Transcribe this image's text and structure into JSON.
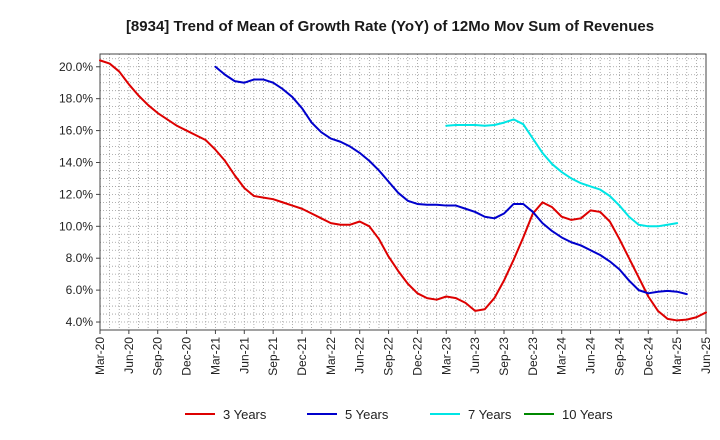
{
  "chart_data": {
    "type": "line",
    "title": "[8934]  Trend of Mean of Growth Rate (YoY) of 12Mo Mov Sum of Revenues",
    "xlabel": "",
    "ylabel": "",
    "ylim": [
      3.5,
      20.8
    ],
    "yticks": [
      4,
      6,
      8,
      10,
      12,
      14,
      16,
      18,
      20
    ],
    "ytick_labels": [
      "4.0%",
      "6.0%",
      "8.0%",
      "10.0%",
      "12.0%",
      "14.0%",
      "16.0%",
      "18.0%",
      "20.0%"
    ],
    "x_start": "Mar-20",
    "xtick_labels": [
      "Mar-20",
      "Jun-20",
      "Sep-20",
      "Dec-20",
      "Mar-21",
      "Jun-21",
      "Sep-21",
      "Dec-21",
      "Mar-22",
      "Jun-22",
      "Sep-22",
      "Dec-22",
      "Mar-23",
      "Jun-23",
      "Sep-23",
      "Dec-23",
      "Mar-24",
      "Jun-24",
      "Sep-24",
      "Dec-24",
      "Mar-25",
      "Jun-25"
    ],
    "grid": true,
    "legend_position": "bottom",
    "series": [
      {
        "name": "3 Years",
        "color": "#dd0000",
        "start_index": 0,
        "values": [
          20.4,
          20.2,
          19.7,
          18.9,
          18.2,
          17.6,
          17.1,
          16.7,
          16.3,
          16.0,
          15.7,
          15.4,
          14.8,
          14.1,
          13.2,
          12.4,
          11.9,
          11.8,
          11.7,
          11.5,
          11.3,
          11.1,
          10.8,
          10.5,
          10.2,
          10.1,
          10.1,
          10.3,
          10.0,
          9.2,
          8.1,
          7.2,
          6.4,
          5.8,
          5.5,
          5.4,
          5.6,
          5.5,
          5.2,
          4.7,
          4.8,
          5.5,
          6.6,
          7.9,
          9.3,
          10.8,
          11.5,
          11.2,
          10.6,
          10.4,
          10.5,
          11.0,
          10.9,
          10.3,
          9.2,
          8.0,
          6.8,
          5.6,
          4.7,
          4.2,
          4.1,
          4.15,
          4.3,
          4.6
        ]
      },
      {
        "name": "5 Years",
        "color": "#0000cc",
        "start_index": 12,
        "values": [
          20.0,
          19.5,
          19.1,
          19.0,
          19.2,
          19.2,
          19.0,
          18.6,
          18.1,
          17.4,
          16.5,
          15.9,
          15.5,
          15.3,
          15.0,
          14.6,
          14.1,
          13.5,
          12.8,
          12.1,
          11.6,
          11.4,
          11.35,
          11.35,
          11.3,
          11.3,
          11.1,
          10.9,
          10.6,
          10.5,
          10.8,
          11.4,
          11.4,
          10.9,
          10.2,
          9.7,
          9.3,
          9.0,
          8.8,
          8.5,
          8.2,
          7.8,
          7.3,
          6.6,
          6.0,
          5.8,
          5.9,
          5.95,
          5.9,
          5.75
        ]
      },
      {
        "name": "7 Years",
        "color": "#00e5e5",
        "start_index": 36,
        "values": [
          16.3,
          16.35,
          16.35,
          16.35,
          16.3,
          16.35,
          16.5,
          16.7,
          16.4,
          15.5,
          14.6,
          13.9,
          13.4,
          13.0,
          12.7,
          12.5,
          12.3,
          11.9,
          11.3,
          10.6,
          10.1,
          10.0,
          10.0,
          10.1,
          10.2
        ]
      },
      {
        "name": "10 Years",
        "color": "#008800",
        "start_index": 0,
        "values": []
      }
    ]
  }
}
